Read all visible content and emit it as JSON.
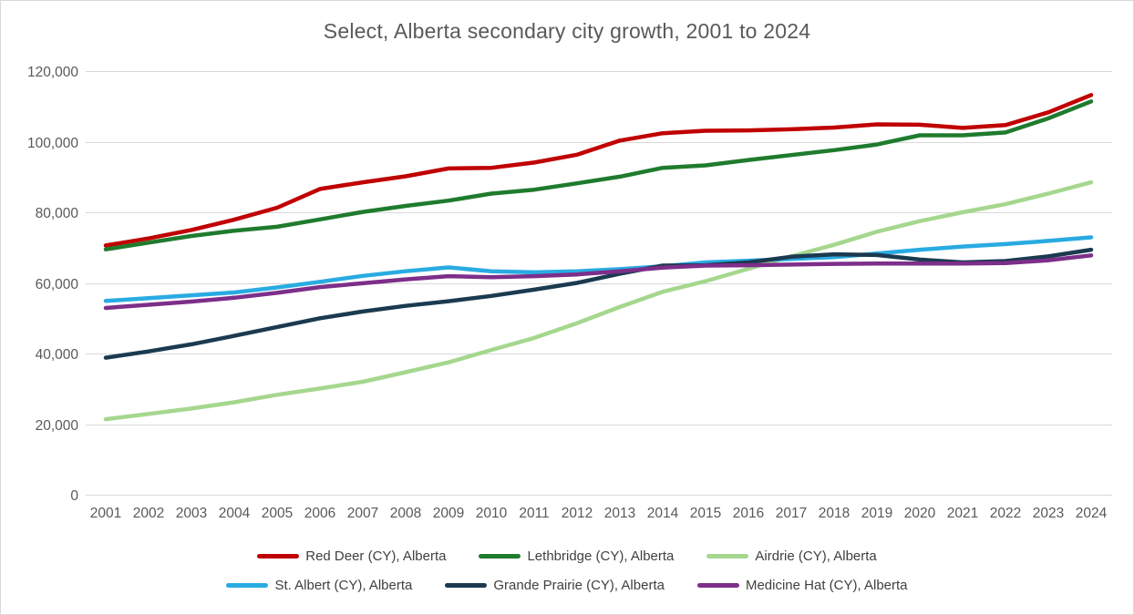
{
  "chart_data": {
    "type": "line",
    "title": "Select, Alberta secondary city growth, 2001 to 2024",
    "x": [
      2001,
      2002,
      2003,
      2004,
      2005,
      2006,
      2007,
      2008,
      2009,
      2010,
      2011,
      2012,
      2013,
      2014,
      2015,
      2016,
      2017,
      2018,
      2019,
      2020,
      2021,
      2022,
      2023,
      2024
    ],
    "series": [
      {
        "name": "Red Deer (CY), Alberta",
        "color": "#c00000",
        "values": [
          70600,
          72600,
          75000,
          77900,
          81300,
          86600,
          88500,
          90200,
          92400,
          92600,
          94100,
          96300,
          100300,
          102400,
          103100,
          103200,
          103500,
          104000,
          104900,
          104800,
          103900,
          104700,
          108300,
          113200
        ]
      },
      {
        "name": "Lethbridge (CY), Alberta",
        "color": "#1f7b2d",
        "values": [
          69500,
          71400,
          73300,
          74800,
          75900,
          78000,
          80100,
          81800,
          83300,
          85300,
          86400,
          88200,
          90100,
          92600,
          93300,
          94800,
          96200,
          97600,
          99200,
          101800,
          101800,
          102600,
          106600,
          111400
        ]
      },
      {
        "name": "Airdrie (CY), Alberta",
        "color": "#a5d78e",
        "values": [
          21400,
          22900,
          24400,
          26200,
          28300,
          30100,
          32000,
          34700,
          37500,
          41000,
          44400,
          48600,
          53200,
          57500,
          60500,
          64000,
          67500,
          70800,
          74500,
          77500,
          80000,
          82300,
          85300,
          88500
        ]
      },
      {
        "name": "St. Albert (CY), Alberta",
        "color": "#29abe2",
        "values": [
          54900,
          55700,
          56500,
          57300,
          58700,
          60300,
          62000,
          63300,
          64400,
          63300,
          63000,
          63300,
          63900,
          64700,
          65800,
          66300,
          66800,
          67300,
          68300,
          69400,
          70300,
          71000,
          71900,
          72900
        ]
      },
      {
        "name": "Grande Prairie (CY), Alberta",
        "color": "#1b3a50",
        "values": [
          38800,
          40600,
          42600,
          45000,
          47500,
          50000,
          51900,
          53500,
          54800,
          56300,
          58100,
          60000,
          62600,
          64900,
          65000,
          65800,
          67400,
          68100,
          67900,
          66600,
          65800,
          66200,
          67500,
          69400
        ]
      },
      {
        "name": "Medicine Hat (CY), Alberta",
        "color": "#7d2e8a",
        "values": [
          52900,
          53800,
          54700,
          55800,
          57200,
          58800,
          59900,
          61000,
          61900,
          61600,
          61900,
          62400,
          63300,
          64300,
          64900,
          65000,
          65200,
          65400,
          65500,
          65500,
          65500,
          65600,
          66400,
          67800
        ]
      }
    ],
    "ylim": [
      0,
      120000
    ],
    "y_ticks": {
      "values": [
        0,
        20000,
        40000,
        60000,
        80000,
        100000,
        120000
      ],
      "labels": [
        "0",
        "20,000",
        "40,000",
        "60,000",
        "80,000",
        "100,000",
        "120,000"
      ]
    },
    "grid": true,
    "legend_position": "bottom",
    "legend_rows": [
      [
        0,
        1,
        2
      ],
      [
        3,
        4,
        5
      ]
    ]
  },
  "ui_colors": {
    "background": "#ffffff",
    "border": "#d9d9d9",
    "gridline": "#d9d9d9",
    "title_text": "#595959",
    "axis_text": "#595959",
    "legend_text": "#404040"
  }
}
